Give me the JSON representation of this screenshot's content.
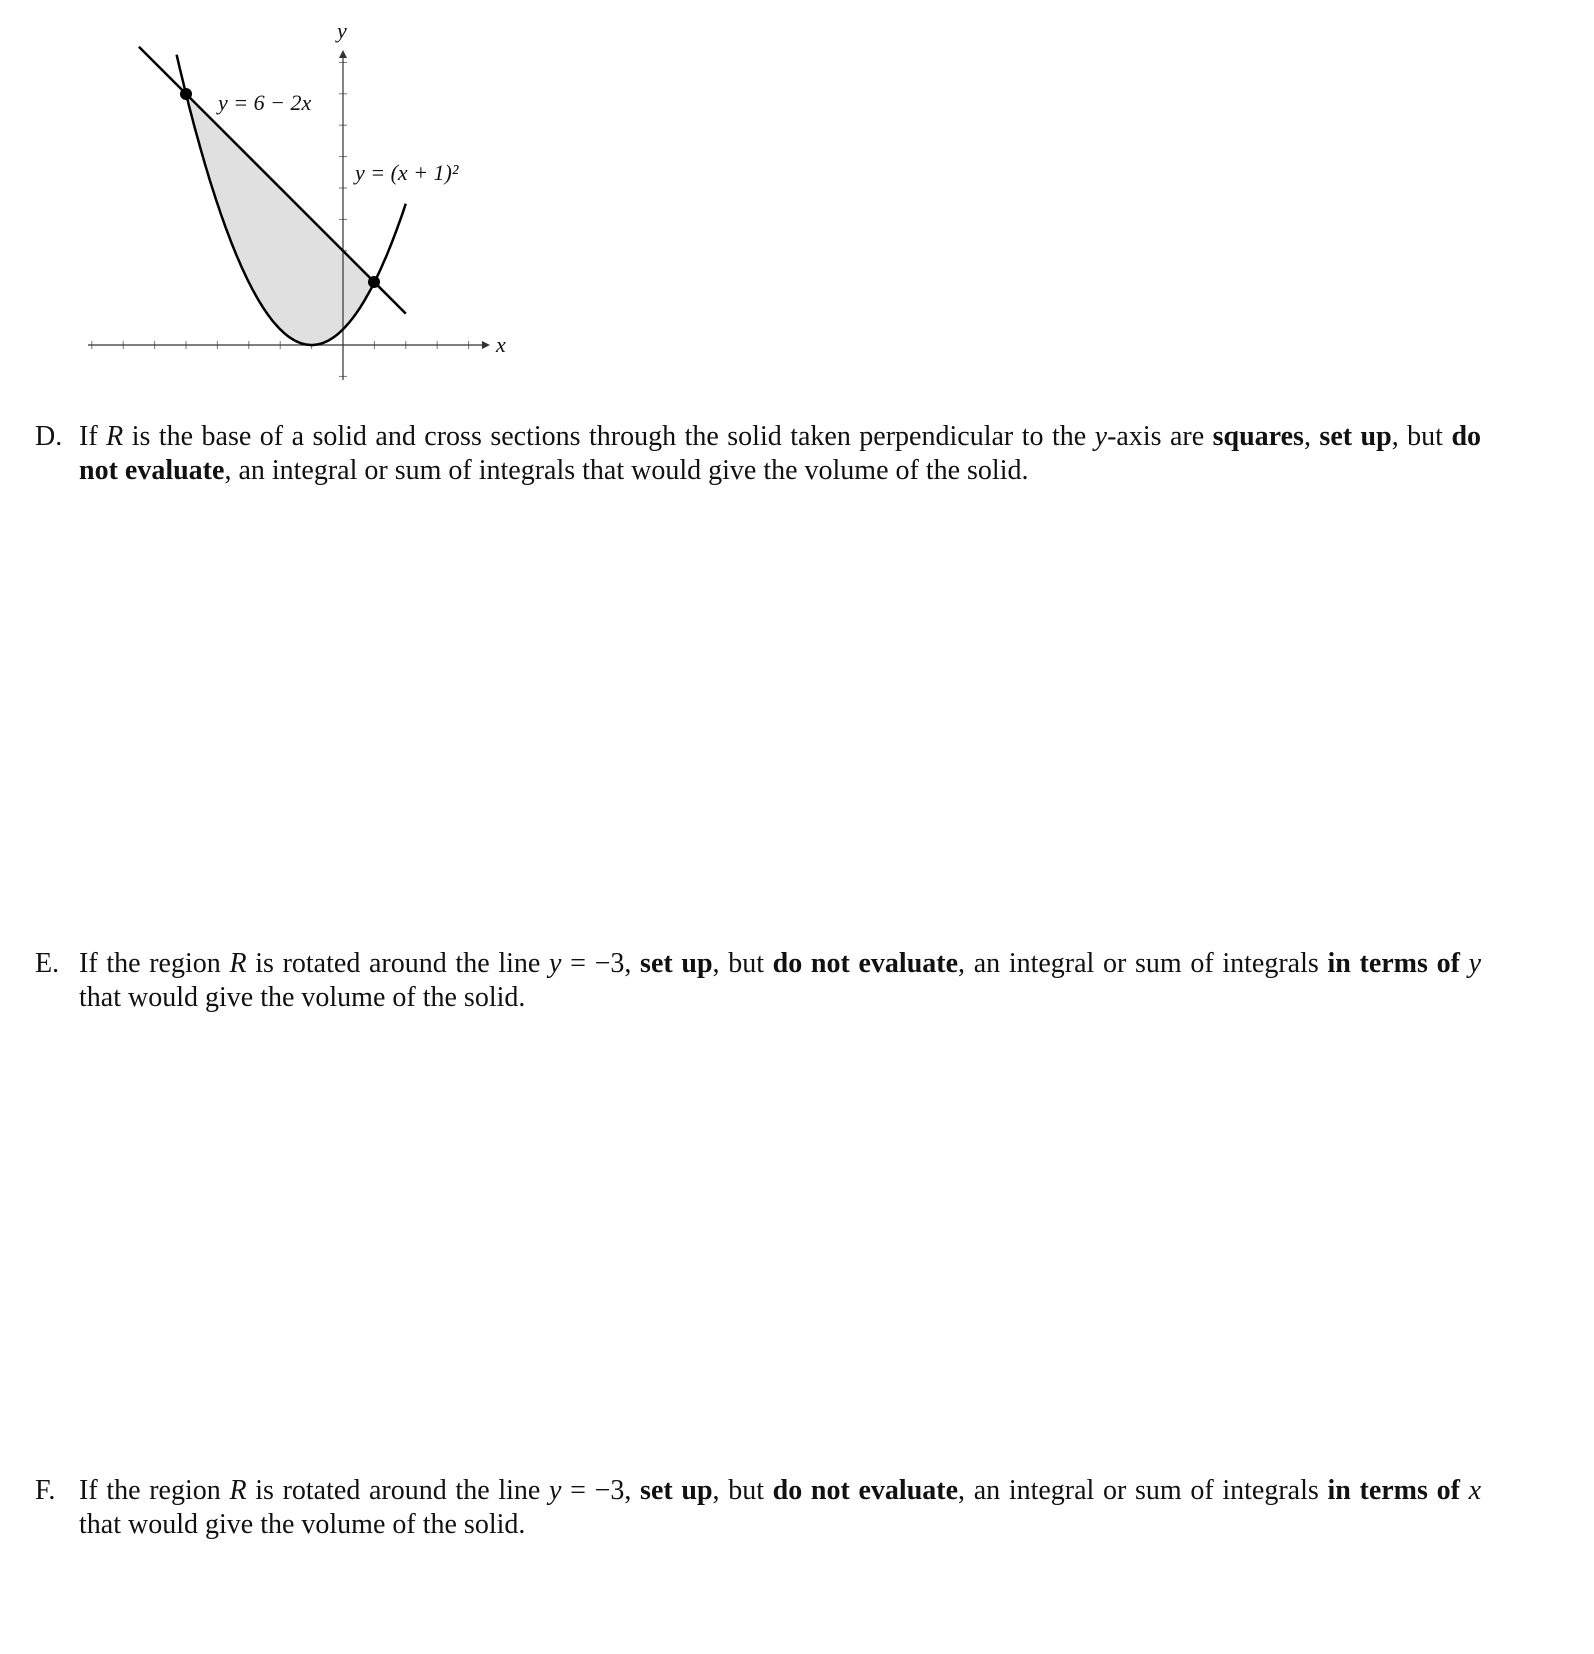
{
  "figure": {
    "axis_labels": {
      "x": "x",
      "y": "y"
    },
    "curve_labels": [
      "y = 6 − 2x",
      "y = (x + 1)²"
    ]
  },
  "questions": [
    {
      "label": "D.",
      "segments": [
        {
          "text": "If "
        },
        {
          "text": "R",
          "italic": true
        },
        {
          "text": " is the base of a solid and cross sections through the solid taken perpendicular to the "
        },
        {
          "text": "y",
          "italic": true
        },
        {
          "text": "-axis are "
        },
        {
          "text": "squares",
          "bold": true
        },
        {
          "text": ", "
        },
        {
          "text": "set up",
          "bold": true
        },
        {
          "text": ", but "
        },
        {
          "text": "do not evaluate",
          "bold": true
        },
        {
          "text": ", an integral or sum of integrals that would give the volume of the solid."
        }
      ]
    },
    {
      "label": "E.",
      "segments": [
        {
          "text": "If the region "
        },
        {
          "text": "R",
          "italic": true
        },
        {
          "text": " is rotated around the line "
        },
        {
          "text": "y",
          "italic": true
        },
        {
          "text": " = −3, "
        },
        {
          "text": "set up",
          "bold": true
        },
        {
          "text": ", but "
        },
        {
          "text": "do not evaluate",
          "bold": true
        },
        {
          "text": ", an integral or sum of integrals "
        },
        {
          "text": "in terms of",
          "bold": true
        },
        {
          "text": " "
        },
        {
          "text": "y",
          "italic": true
        },
        {
          "text": " that would give the volume of the solid."
        }
      ]
    },
    {
      "label": "F.",
      "segments": [
        {
          "text": "If the region "
        },
        {
          "text": "R",
          "italic": true
        },
        {
          "text": " is rotated around the line "
        },
        {
          "text": "y",
          "italic": true
        },
        {
          "text": " = −3, "
        },
        {
          "text": "set up",
          "bold": true
        },
        {
          "text": ", but "
        },
        {
          "text": "do not evaluate",
          "bold": true
        },
        {
          "text": ", an integral or sum of integrals "
        },
        {
          "text": "in terms of",
          "bold": true
        },
        {
          "text": " "
        },
        {
          "text": "x",
          "italic": true
        },
        {
          "text": " that would give the volume of the solid."
        }
      ]
    }
  ]
}
